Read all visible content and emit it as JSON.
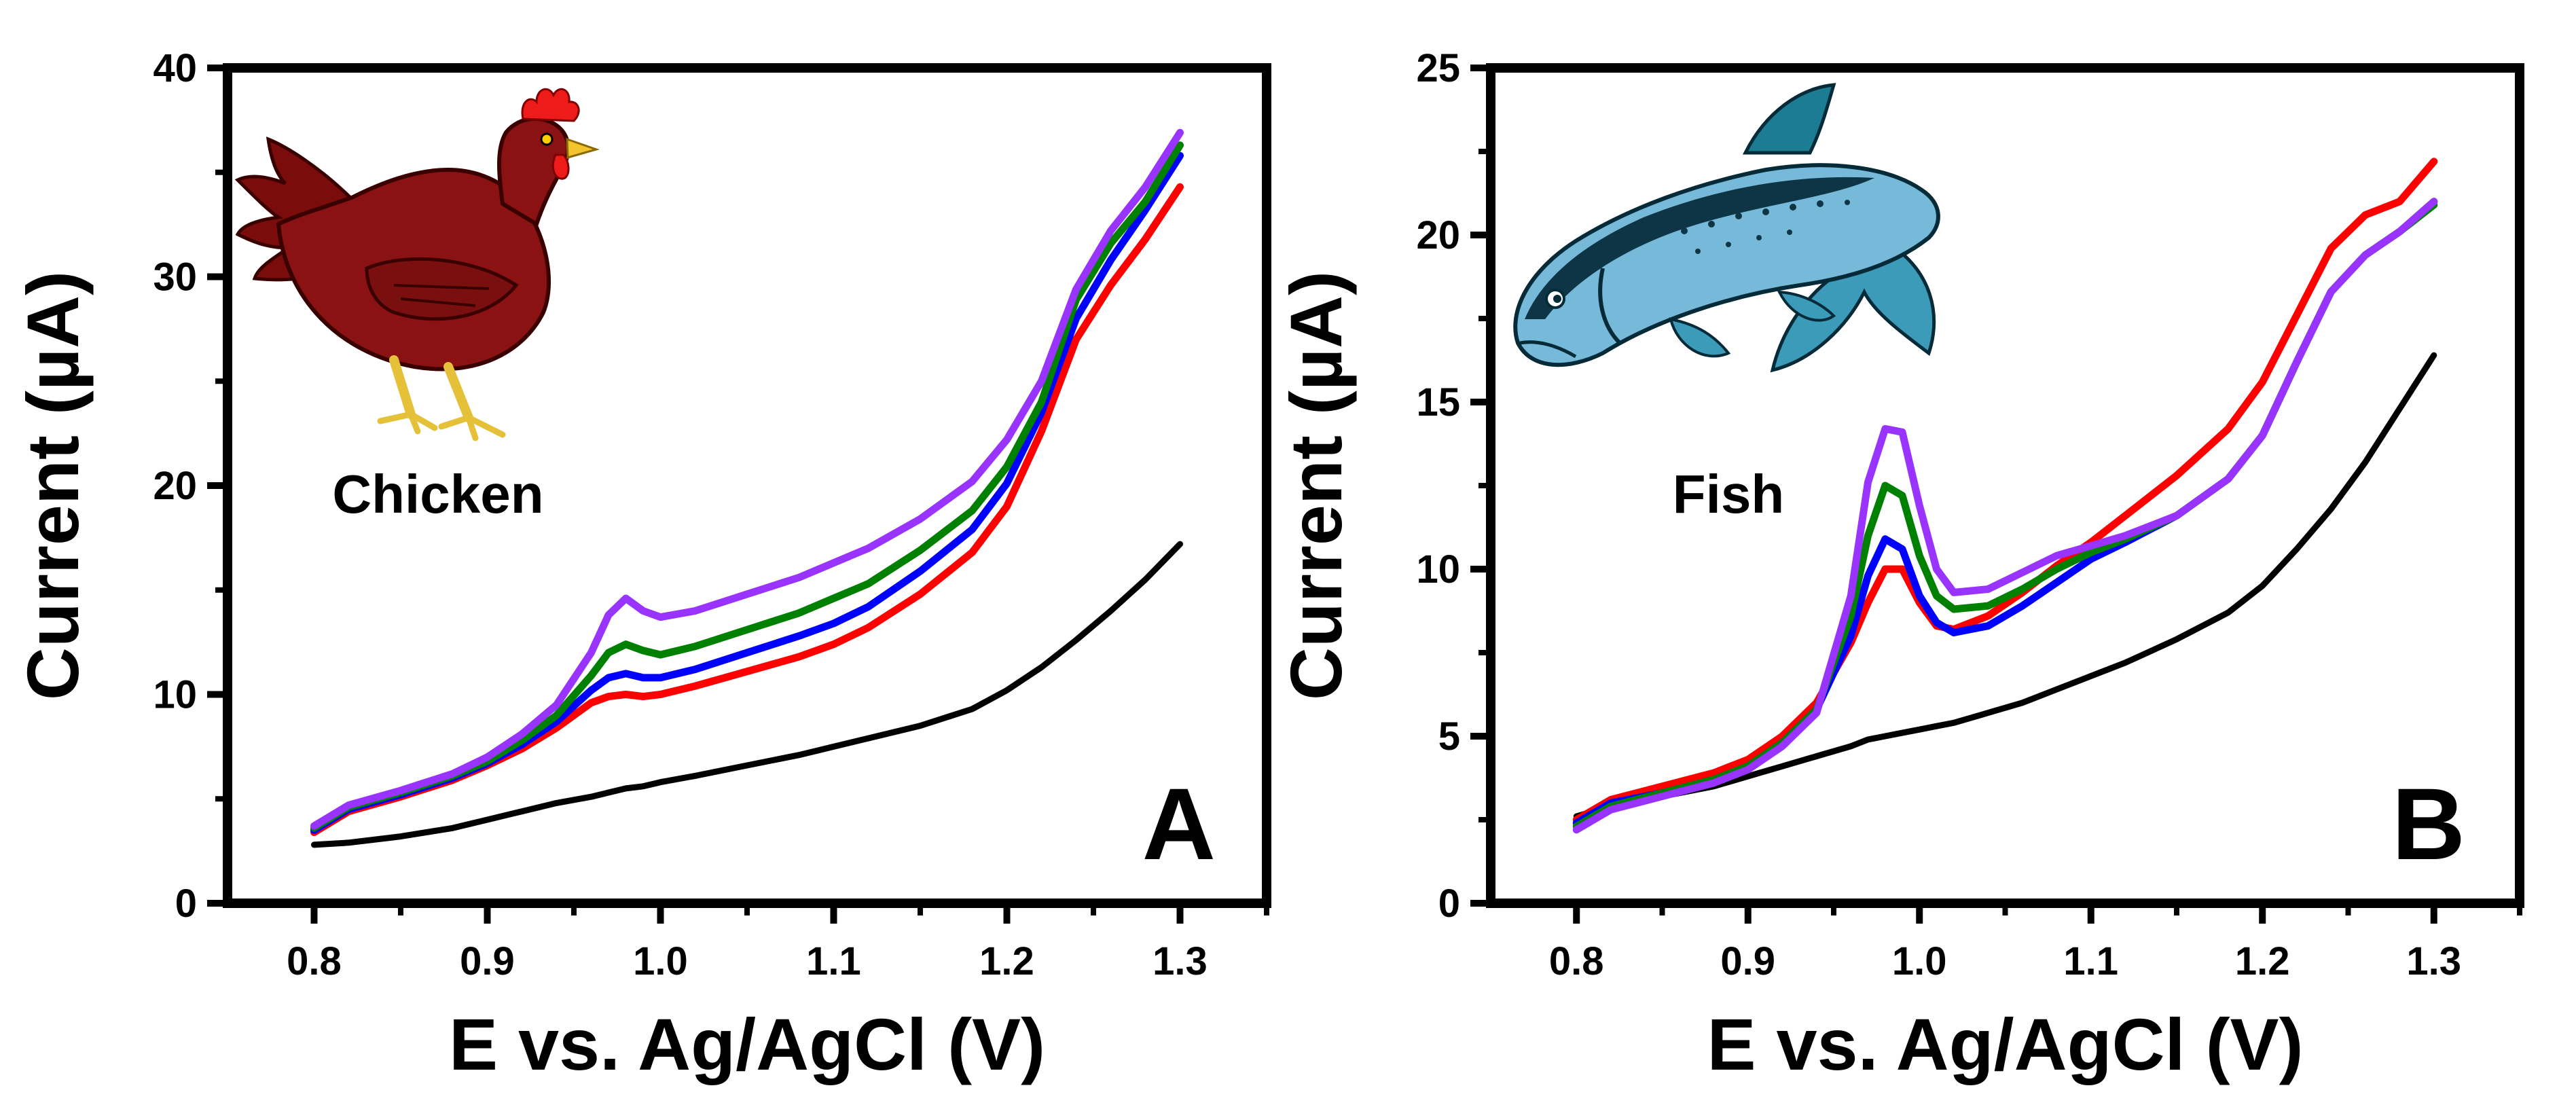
{
  "figure": {
    "panels": [
      {
        "panel_letter": "A",
        "sample_label": "Chicken",
        "illustration": "chicken-illustration"
      },
      {
        "panel_letter": "B",
        "sample_label": "Fish",
        "illustration": "fish-illustration"
      }
    ]
  },
  "chart_data": [
    {
      "type": "line",
      "panel": "A",
      "xlabel": "E vs. Ag/AgCl (V)",
      "ylabel": "Current (µA)",
      "xlim": [
        0.75,
        1.35
      ],
      "ylim": [
        0,
        40
      ],
      "xticks": [
        "0.8",
        "0.9",
        "1.0",
        "1.1",
        "1.2",
        "1.3"
      ],
      "yticks": [
        "0",
        "10",
        "20",
        "30",
        "40"
      ],
      "x": [
        0.8,
        0.82,
        0.85,
        0.88,
        0.9,
        0.92,
        0.94,
        0.96,
        0.97,
        0.98,
        0.99,
        1.0,
        1.02,
        1.05,
        1.08,
        1.1,
        1.12,
        1.15,
        1.18,
        1.2,
        1.22,
        1.24,
        1.26,
        1.28,
        1.3
      ],
      "series": [
        {
          "name": "black",
          "color": "#000000",
          "values": [
            2.8,
            2.9,
            3.2,
            3.6,
            4.0,
            4.4,
            4.8,
            5.1,
            5.3,
            5.5,
            5.6,
            5.8,
            6.1,
            6.6,
            7.1,
            7.5,
            7.9,
            8.5,
            9.3,
            10.2,
            11.3,
            12.6,
            14.0,
            15.5,
            17.2
          ]
        },
        {
          "name": "red",
          "color": "#ff0000",
          "values": [
            3.4,
            4.4,
            5.1,
            5.9,
            6.6,
            7.4,
            8.4,
            9.6,
            9.9,
            10.0,
            9.9,
            10.0,
            10.4,
            11.1,
            11.8,
            12.4,
            13.2,
            14.8,
            16.8,
            19.0,
            22.6,
            27.0,
            29.6,
            31.8,
            34.3
          ]
        },
        {
          "name": "blue",
          "color": "#0000ff",
          "values": [
            3.5,
            4.5,
            5.2,
            6.0,
            6.7,
            7.6,
            8.7,
            10.2,
            10.8,
            11.0,
            10.8,
            10.8,
            11.2,
            12.0,
            12.8,
            13.4,
            14.2,
            15.9,
            17.9,
            20.1,
            23.5,
            28.0,
            30.8,
            33.2,
            35.8
          ]
        },
        {
          "name": "green",
          "color": "#008000",
          "values": [
            3.6,
            4.6,
            5.3,
            6.1,
            6.8,
            7.8,
            9.0,
            10.9,
            12.0,
            12.4,
            12.1,
            11.9,
            12.3,
            13.1,
            13.9,
            14.6,
            15.3,
            16.9,
            18.8,
            20.9,
            24.0,
            28.9,
            31.6,
            33.6,
            36.3
          ]
        },
        {
          "name": "purple",
          "color": "#9933ff",
          "values": [
            3.7,
            4.7,
            5.4,
            6.2,
            7.0,
            8.1,
            9.5,
            12.0,
            13.8,
            14.6,
            14.0,
            13.7,
            14.0,
            14.8,
            15.6,
            16.3,
            17.0,
            18.4,
            20.2,
            22.2,
            25.0,
            29.4,
            32.2,
            34.3,
            36.9
          ]
        }
      ]
    },
    {
      "type": "line",
      "panel": "B",
      "xlabel": "E vs. Ag/AgCl (V)",
      "ylabel": "Current (µA)",
      "xlim": [
        0.75,
        1.35
      ],
      "ylim": [
        0,
        25
      ],
      "xticks": [
        "0.8",
        "0.9",
        "1.0",
        "1.1",
        "1.2",
        "1.3"
      ],
      "yticks": [
        "0",
        "5",
        "10",
        "15",
        "20",
        "25"
      ],
      "x": [
        0.8,
        0.82,
        0.85,
        0.88,
        0.9,
        0.92,
        0.94,
        0.96,
        0.97,
        0.98,
        0.99,
        1.0,
        1.01,
        1.02,
        1.04,
        1.06,
        1.08,
        1.1,
        1.12,
        1.15,
        1.18,
        1.2,
        1.22,
        1.24,
        1.26,
        1.28,
        1.3
      ],
      "series": [
        {
          "name": "black",
          "color": "#000000",
          "values": [
            2.6,
            2.9,
            3.2,
            3.5,
            3.8,
            4.1,
            4.4,
            4.7,
            4.9,
            5.0,
            5.1,
            5.2,
            5.3,
            5.4,
            5.7,
            6.0,
            6.4,
            6.8,
            7.2,
            7.9,
            8.7,
            9.5,
            10.6,
            11.8,
            13.2,
            14.8,
            16.4
          ]
        },
        {
          "name": "red",
          "color": "#ff0000",
          "values": [
            2.5,
            3.1,
            3.5,
            3.9,
            4.3,
            5.0,
            6.0,
            7.8,
            9.0,
            10.0,
            10.0,
            9.0,
            8.3,
            8.2,
            8.6,
            9.3,
            10.1,
            10.8,
            11.6,
            12.8,
            14.2,
            15.6,
            17.6,
            19.6,
            20.6,
            21.0,
            22.2
          ]
        },
        {
          "name": "blue",
          "color": "#0000ff",
          "values": [
            2.4,
            3.0,
            3.3,
            3.7,
            4.1,
            4.8,
            5.8,
            8.0,
            9.8,
            10.9,
            10.6,
            9.2,
            8.4,
            8.1,
            8.3,
            8.9,
            9.6,
            10.3,
            10.8,
            11.6,
            12.7,
            14.0,
            16.2,
            18.3,
            19.4,
            20.1,
            21.0
          ]
        },
        {
          "name": "green",
          "color": "#008000",
          "values": [
            2.3,
            2.9,
            3.3,
            3.7,
            4.1,
            4.8,
            5.8,
            8.6,
            11.0,
            12.5,
            12.2,
            10.4,
            9.2,
            8.8,
            8.9,
            9.4,
            10.0,
            10.5,
            10.9,
            11.6,
            12.7,
            14.0,
            16.2,
            18.3,
            19.4,
            20.1,
            20.9
          ]
        },
        {
          "name": "purple",
          "color": "#9933ff",
          "values": [
            2.2,
            2.8,
            3.2,
            3.6,
            4.0,
            4.7,
            5.7,
            9.2,
            12.6,
            14.2,
            14.1,
            11.9,
            10.0,
            9.3,
            9.4,
            9.9,
            10.4,
            10.7,
            11.0,
            11.6,
            12.7,
            14.0,
            16.2,
            18.3,
            19.4,
            20.1,
            21.0
          ]
        }
      ]
    }
  ]
}
